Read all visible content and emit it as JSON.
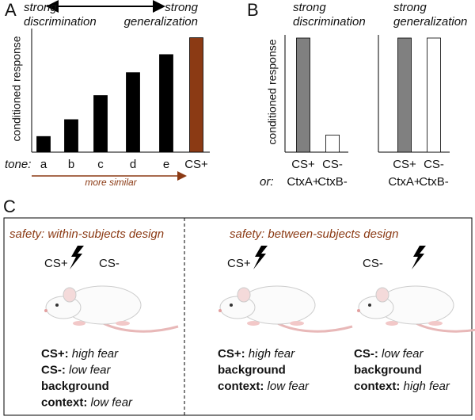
{
  "chart_data": [
    {
      "type": "bar",
      "panel": "A",
      "note_left": [
        "strong",
        "discrimination"
      ],
      "note_right": [
        "strong",
        "generalization"
      ],
      "ylabel": "conditioned response",
      "x_prefix": "tone:",
      "categories": [
        "a",
        "b",
        "c",
        "d",
        "e",
        "CS+"
      ],
      "values": [
        13,
        27,
        47,
        66,
        81,
        95
      ],
      "colors": [
        "#000000",
        "#000000",
        "#000000",
        "#000000",
        "#000000",
        "#8b3a14"
      ],
      "arrow_label": "more similar",
      "ylim": [
        0,
        100
      ]
    },
    {
      "type": "bar",
      "panel": "B",
      "title": [
        "strong",
        "discrimination"
      ],
      "ylabel": "conditioned response",
      "categories": [
        "CS+",
        "CS-"
      ],
      "categories2_prefix": "or:",
      "categories2": [
        "CtxA+",
        "CtxB-"
      ],
      "values": [
        100,
        15
      ],
      "colors": [
        "#808080",
        "#ffffff"
      ],
      "ylim": [
        0,
        100
      ]
    },
    {
      "type": "bar",
      "title": [
        "strong",
        "generalization"
      ],
      "categories": [
        "CS+",
        "CS-"
      ],
      "categories2": [
        "CtxA+",
        "CtxB-"
      ],
      "values": [
        100,
        100
      ],
      "colors": [
        "#808080",
        "#ffffff"
      ],
      "ylim": [
        0,
        100
      ]
    }
  ],
  "panel_c": {
    "label": "C",
    "left": {
      "title": "safety: within-subjects design",
      "cues": [
        "CS+",
        "CS-"
      ],
      "lines": [
        {
          "bold": "CS+:",
          "italic": "high fear"
        },
        {
          "bold": "CS-:",
          "italic": "low fear"
        },
        {
          "bold": "background"
        },
        {
          "bold": "context:",
          "italic": "low fear"
        }
      ]
    },
    "right": {
      "title": "safety: between-subjects design",
      "cues": [
        "CS+",
        "CS-"
      ],
      "lines_a": [
        {
          "bold": "CS+:",
          "italic": "high fear"
        },
        {
          "bold": "background"
        },
        {
          "bold": "context:",
          "italic": "low fear"
        }
      ],
      "lines_b": [
        {
          "bold": "CS-:",
          "italic": "low fear"
        },
        {
          "bold": "background"
        },
        {
          "bold": "context:",
          "italic": "high fear"
        }
      ]
    }
  }
}
